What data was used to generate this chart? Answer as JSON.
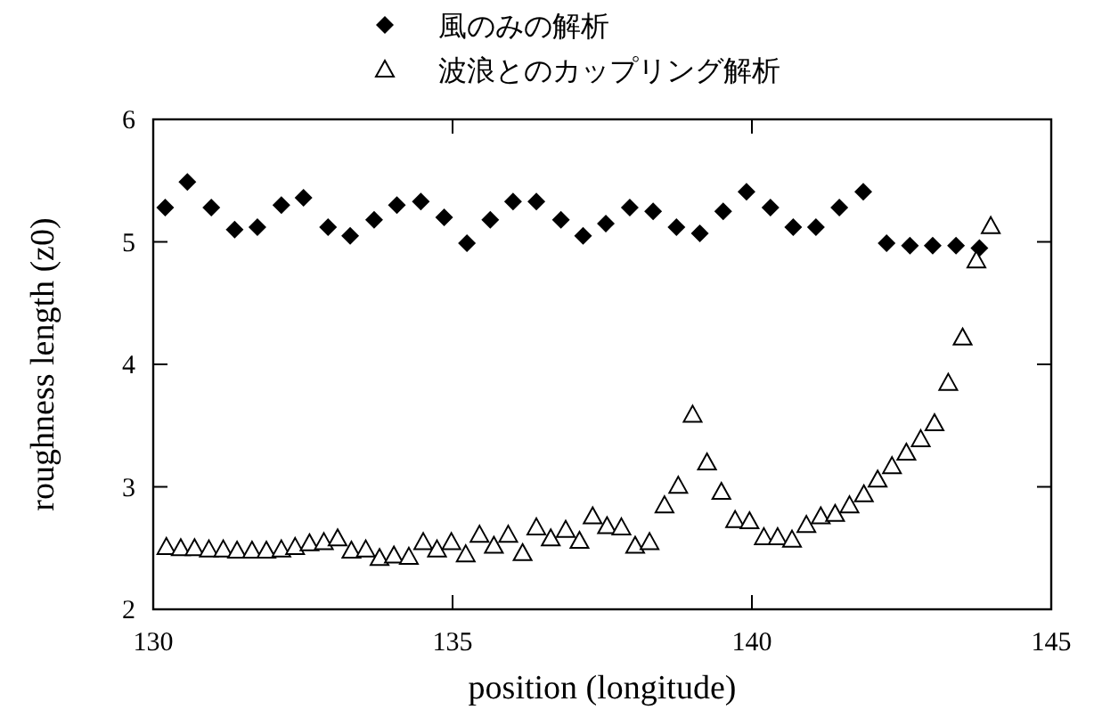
{
  "chart_data": {
    "type": "scatter",
    "xlabel": "position (longitude)",
    "ylabel": "roughness length (z0)",
    "xlim": [
      130,
      145
    ],
    "ylim": [
      2,
      6
    ],
    "xticks": [
      130,
      135,
      140,
      145
    ],
    "yticks": [
      2,
      3,
      4,
      5,
      6
    ],
    "grid": false,
    "legend": "top",
    "series": [
      {
        "name": "風のみの解析",
        "color": "#000000",
        "marker": "diamond",
        "x": [
          130.2,
          130.57,
          130.97,
          131.36,
          131.74,
          132.14,
          132.51,
          132.92,
          133.29,
          133.69,
          134.07,
          134.47,
          134.86,
          135.24,
          135.63,
          136.01,
          136.4,
          136.81,
          137.18,
          137.56,
          137.96,
          138.35,
          138.74,
          139.13,
          139.52,
          139.91,
          140.31,
          140.69,
          141.07,
          141.46,
          141.86,
          142.25,
          142.64,
          143.02,
          143.41,
          143.8
        ],
        "values": [
          5.28,
          5.49,
          5.28,
          5.1,
          5.12,
          5.3,
          5.36,
          5.12,
          5.05,
          5.18,
          5.3,
          5.33,
          5.2,
          4.99,
          5.18,
          5.33,
          5.33,
          5.18,
          5.05,
          5.15,
          5.28,
          5.25,
          5.12,
          5.07,
          5.25,
          5.41,
          5.28,
          5.12,
          5.12,
          5.28,
          5.41,
          4.99,
          4.97,
          4.97,
          4.97,
          4.95
        ]
      },
      {
        "name": "波浪とのカップリング解析",
        "color": "#000000",
        "marker": "triangle",
        "x": [
          130.22,
          130.46,
          130.69,
          130.93,
          131.17,
          131.4,
          131.65,
          131.89,
          132.14,
          132.37,
          132.61,
          132.85,
          133.08,
          133.31,
          133.55,
          133.78,
          134.02,
          134.27,
          134.51,
          134.74,
          134.98,
          135.22,
          135.45,
          135.69,
          135.93,
          136.17,
          136.4,
          136.64,
          136.89,
          137.12,
          137.34,
          137.58,
          137.82,
          138.05,
          138.29,
          138.54,
          138.77,
          139.01,
          139.25,
          139.49,
          139.72,
          139.96,
          140.2,
          140.43,
          140.67,
          140.91,
          141.15,
          141.39,
          141.63,
          141.87,
          142.1,
          142.34,
          142.58,
          142.82,
          143.05,
          143.28,
          143.52,
          143.75,
          143.99
        ],
        "values": [
          2.51,
          2.5,
          2.5,
          2.49,
          2.49,
          2.48,
          2.48,
          2.48,
          2.49,
          2.51,
          2.54,
          2.55,
          2.58,
          2.48,
          2.49,
          2.42,
          2.44,
          2.43,
          2.55,
          2.49,
          2.55,
          2.45,
          2.61,
          2.52,
          2.61,
          2.46,
          2.67,
          2.58,
          2.65,
          2.56,
          2.76,
          2.68,
          2.67,
          2.52,
          2.55,
          2.85,
          3.01,
          3.59,
          3.2,
          2.96,
          2.73,
          2.72,
          2.59,
          2.59,
          2.57,
          2.69,
          2.76,
          2.78,
          2.85,
          2.94,
          3.06,
          3.17,
          3.28,
          3.39,
          3.52,
          3.85,
          4.22,
          4.85,
          5.13
        ]
      }
    ]
  }
}
